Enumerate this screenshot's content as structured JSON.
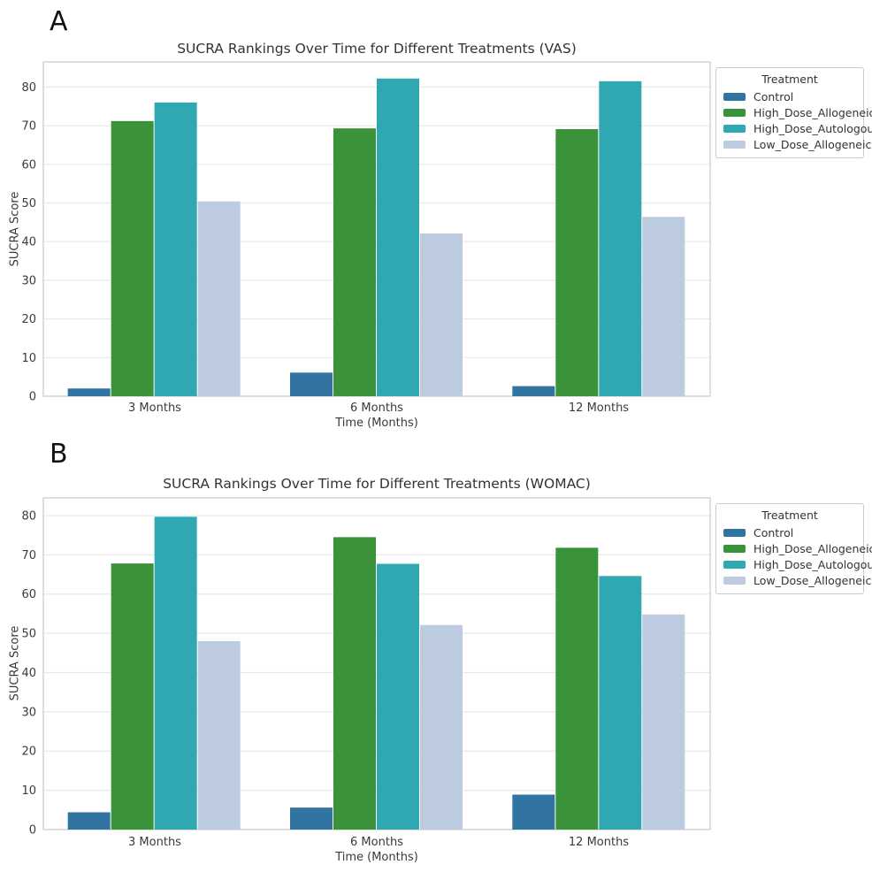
{
  "figure": {
    "background": "#ffffff",
    "grid_color": "#e9e9e9",
    "frame_color": "#c9c9c9",
    "text_color": "#3a3a3a"
  },
  "chart_data": [
    {
      "type": "bar",
      "panel_label": "A",
      "title": "SUCRA Rankings Over Time for Different Treatments (VAS)",
      "xlabel": "Time (Months)",
      "ylabel": "SUCRA Score",
      "categories": [
        "3 Months",
        "6 Months",
        "12 Months"
      ],
      "series": [
        {
          "name": "Control",
          "color": "#3274a1",
          "values": [
            2.0,
            6.1,
            2.6
          ]
        },
        {
          "name": "High_Dose_Allogeneic",
          "color": "#3a923a",
          "values": [
            71.2,
            69.3,
            69.1
          ]
        },
        {
          "name": "High_Dose_Autologous",
          "color": "#2fa8b2",
          "values": [
            76.0,
            82.2,
            81.5
          ]
        },
        {
          "name": "Low_Dose_Allogeneic",
          "color": "#bccbdf",
          "values": [
            50.4,
            42.1,
            46.4
          ]
        }
      ],
      "legend_title": "Treatment",
      "legend_position": "upper right, outside axes",
      "yticks": [
        0,
        10,
        20,
        30,
        40,
        50,
        60,
        70,
        80
      ],
      "ylim": [
        0,
        86.5
      ],
      "grid": true
    },
    {
      "type": "bar",
      "panel_label": "B",
      "title": "SUCRA Rankings Over Time for Different Treatments (WOMAC)",
      "xlabel": "Time (Months)",
      "ylabel": "SUCRA Score",
      "categories": [
        "3 Months",
        "6 Months",
        "12 Months"
      ],
      "series": [
        {
          "name": "Control",
          "color": "#3274a1",
          "values": [
            4.4,
            5.6,
            8.9
          ]
        },
        {
          "name": "High_Dose_Allogeneic",
          "color": "#3a923a",
          "values": [
            67.8,
            74.5,
            71.8
          ]
        },
        {
          "name": "High_Dose_Autologous",
          "color": "#2fa8b2",
          "values": [
            79.7,
            67.7,
            64.6
          ]
        },
        {
          "name": "Low_Dose_Allogeneic",
          "color": "#bccbdf",
          "values": [
            48.0,
            52.1,
            54.8
          ]
        }
      ],
      "legend_title": "Treatment",
      "legend_position": "upper right, outside axes",
      "yticks": [
        0,
        10,
        20,
        30,
        40,
        50,
        60,
        70,
        80
      ],
      "ylim": [
        0,
        84.5
      ],
      "grid": true
    }
  ]
}
